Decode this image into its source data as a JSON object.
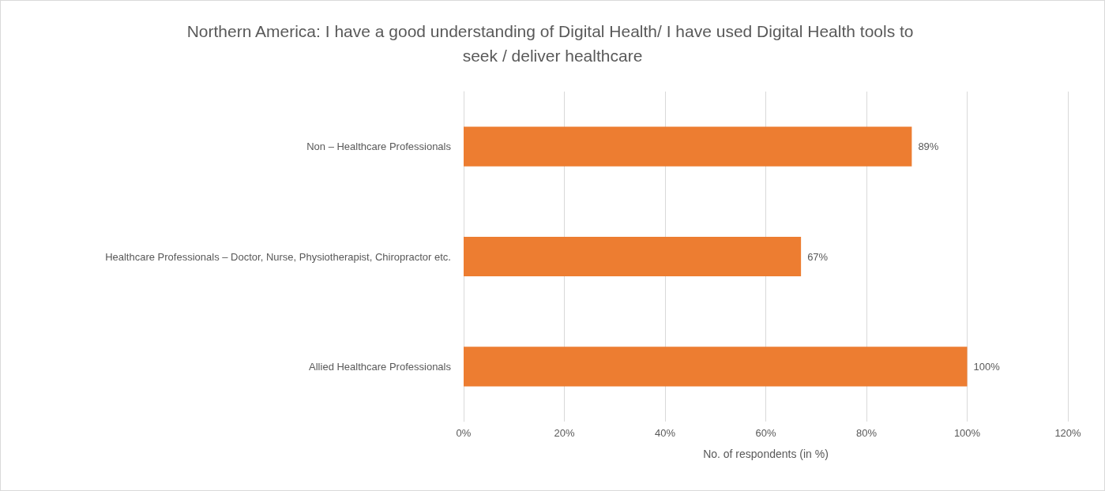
{
  "chart_data": {
    "type": "bar",
    "orientation": "horizontal",
    "title": "Northern America: I have a good understanding of Digital Health/ I have used Digital Health tools to seek / deliver healthcare",
    "xlabel": "No. of respondents (in %)",
    "categories": [
      "Non – Healthcare Professionals",
      "Healthcare Professionals – Doctor, Nurse, Physiotherapist, Chiropractor etc.",
      "Allied Healthcare Professionals"
    ],
    "values": [
      89,
      67,
      100
    ],
    "value_labels": [
      "89%",
      "67%",
      "100%"
    ],
    "color": "#ed7d31",
    "xlim": [
      0,
      120
    ],
    "xticks": [
      {
        "value": 0,
        "label": "0%"
      },
      {
        "value": 20,
        "label": "20%"
      },
      {
        "value": 40,
        "label": "40%"
      },
      {
        "value": 60,
        "label": "60%"
      },
      {
        "value": 80,
        "label": "80%"
      },
      {
        "value": 100,
        "label": "100%"
      },
      {
        "value": 120,
        "label": "120%"
      }
    ],
    "grid": "x"
  }
}
